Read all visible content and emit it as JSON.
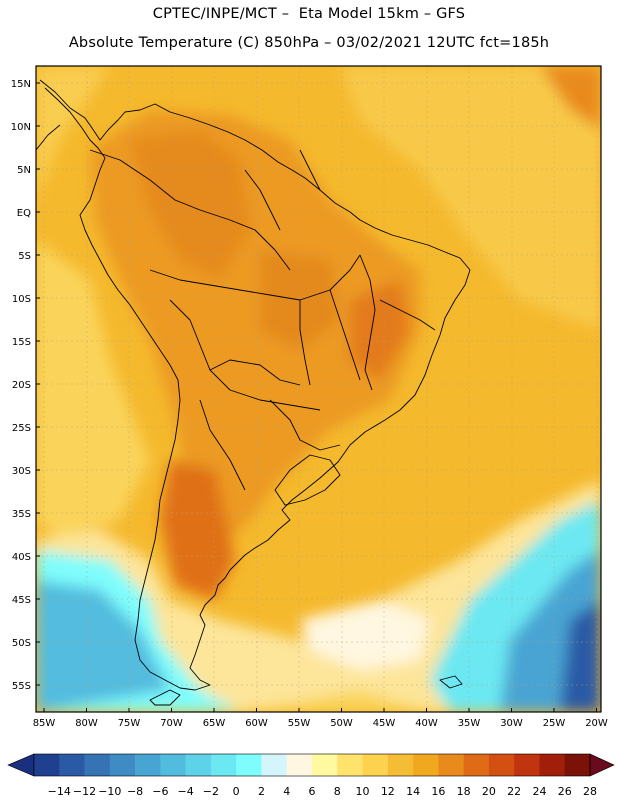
{
  "header": {
    "line1": "CPTEC/INPE/MCT –  Eta Model 15km – GFS",
    "line2": "Absolute Temperature (C) 850hPa – 03/02/2021 12UTC fct=185h"
  },
  "map": {
    "lat_labels": [
      "15N",
      "10N",
      "5N",
      "EQ",
      "5S",
      "10S",
      "15S",
      "20S",
      "25S",
      "30S",
      "35S",
      "40S",
      "45S",
      "50S",
      "55S"
    ],
    "lon_labels": [
      "85W",
      "80W",
      "75W",
      "70W",
      "65W",
      "60W",
      "55W",
      "50W",
      "45W",
      "40W",
      "35W",
      "30W",
      "25W",
      "20W"
    ],
    "region": "South America",
    "variable": "Absolute Temperature (C) 850hPa"
  },
  "colorbar": {
    "labels": [
      "-14",
      "-12",
      "-10",
      "-8",
      "-6",
      "-4",
      "-2",
      "0",
      "2",
      "4",
      "6",
      "8",
      "10",
      "12",
      "14",
      "16",
      "18",
      "20",
      "22",
      "24",
      "26",
      "28"
    ],
    "colors": [
      "#1f3f8f",
      "#2a5aa5",
      "#3673b5",
      "#3f8cc5",
      "#48a4d3",
      "#52bcdf",
      "#5ed2e8",
      "#6ce8f2",
      "#7ffdfd",
      "#d4f6fb",
      "#fff7e1",
      "#fffaa0",
      "#ffe36d",
      "#fcd24f",
      "#f5bd36",
      "#f0a91f",
      "#e98a1c",
      "#e06b17",
      "#d34f12",
      "#c0340f",
      "#a11e0b",
      "#7a1208"
    ],
    "arrow_left_color": "#1a2f80",
    "arrow_right_color": "#6a0a1e"
  }
}
